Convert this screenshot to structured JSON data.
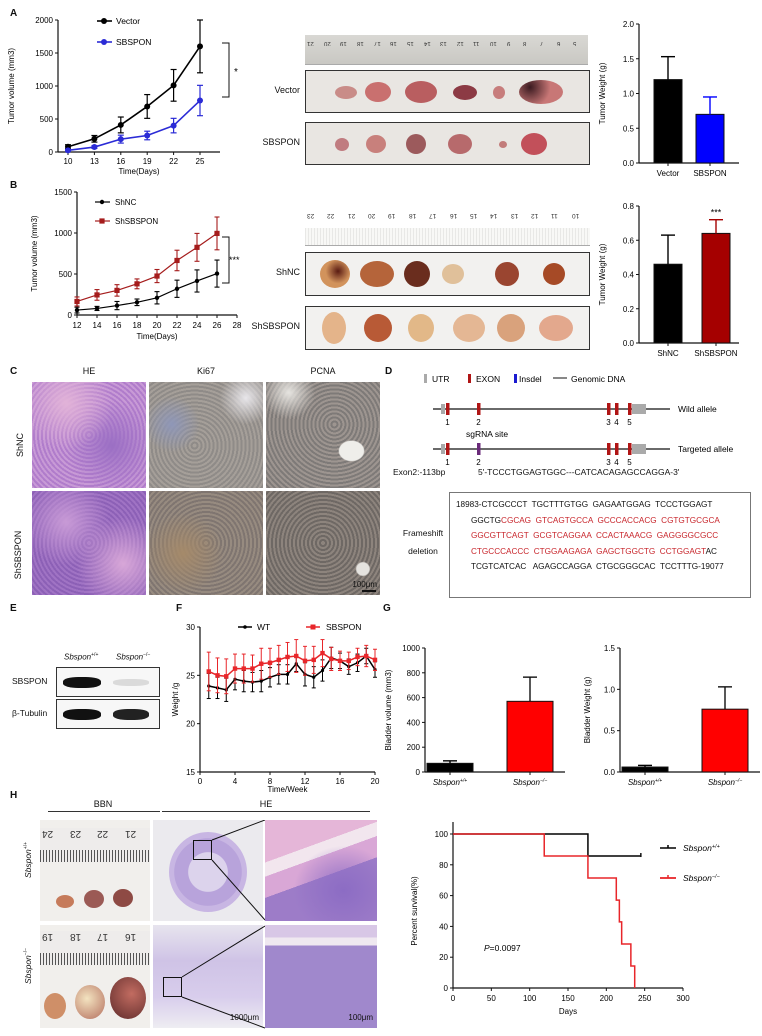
{
  "panels": {
    "A": {
      "letter": "A"
    },
    "B": {
      "letter": "B"
    },
    "C": {
      "letter": "C"
    },
    "D": {
      "letter": "D"
    },
    "E": {
      "letter": "E"
    },
    "F": {
      "letter": "F"
    },
    "G": {
      "letter": "G"
    },
    "H": {
      "letter": "H"
    }
  },
  "photoA": {
    "rows": [
      "Vector",
      "SBSPON"
    ],
    "ruler_ticks": [
      "21",
      "20",
      "19",
      "18",
      "17",
      "16",
      "15",
      "14",
      "13",
      "12",
      "11",
      "10",
      "9",
      "8",
      "7",
      "6",
      "5"
    ]
  },
  "photoB": {
    "rows": [
      "ShNC",
      "ShSBSPON"
    ],
    "ruler_ticks": [
      "23",
      "22",
      "21",
      "20",
      "19",
      "18",
      "17",
      "16",
      "15",
      "14",
      "13",
      "12",
      "11",
      "10"
    ]
  },
  "histoC": {
    "columns": [
      "HE",
      "Ki67",
      "PCNA"
    ],
    "rows": [
      "ShNC",
      "ShSBSPON"
    ],
    "scale_bar": "100μm"
  },
  "geneD": {
    "legend": {
      "utr": "UTR",
      "exon": "EXON",
      "insdel": "Insdel",
      "genomic": "Genomic DNA"
    },
    "wild_label": "Wild allele",
    "targeted_label": "Targeted allele",
    "sgrna_label": "sgRNA site",
    "exon_numbers": [
      "1",
      "2",
      "3",
      "4",
      "5"
    ],
    "exon2_label": "Exon2:-113bp",
    "exon2_seq": "5'-TCCCTGGAGTGGC---CATCACAGAGCCAGGA-3'",
    "frameshift_label_1": "Frameshift",
    "frameshift_label_2": "deletion",
    "seq_lines": [
      [
        {
          "t": "18983-CTCGCCCT  TGCTTTGTGG  GAGAATGGAG  TCCCTGGAGT",
          "red": false
        }
      ],
      [
        {
          "t": "GGCTG",
          "red": false
        },
        {
          "t": "CGCAG  GTCAGTGCCA  GCCCACCACG  CGTGTGCGCA",
          "red": true
        }
      ],
      [
        {
          "t": "GGCGTTCAGT  GCGTCAGGAA  CCACTAAACG  GAGGGGCGCC",
          "red": true
        }
      ],
      [
        {
          "t": "CTGCCCACCC  CTGGAAGAGA  GAGCTGGCTG  CCTGGAGT",
          "red": true
        },
        {
          "t": "AC",
          "red": false
        }
      ],
      [
        {
          "t": "TCGTCATCAC   AGAGCCAGGA  CTGCGGGCAC  TCCTTTG-19077",
          "red": false
        }
      ]
    ]
  },
  "westernE": {
    "col1": "Sbspon",
    "col1_sup": "+/+",
    "col2": "Sbspon",
    "col2_sup": "−/−",
    "row1": "SBSPON",
    "row2": "β-Tubulin"
  },
  "histoH": {
    "bbn_label": "BBN",
    "he_label": "HE",
    "row1": "Sbspon",
    "row1_sup": "+/+",
    "row2": "Sbspon",
    "row2_sup": "−/−",
    "ruler1": [
      "24",
      "23",
      "22",
      "21"
    ],
    "ruler2": [
      "19",
      "18",
      "17",
      "16"
    ],
    "scale_low": "1000μm",
    "scale_high": "100μm"
  },
  "chart_data": [
    {
      "id": "A-line",
      "type": "line",
      "title": "",
      "xlabel": "Time(Days)",
      "ylabel": "Tumor volume (mm3)",
      "x": [
        10,
        13,
        16,
        19,
        22,
        25
      ],
      "ylim": [
        0,
        2000
      ],
      "yticks": [
        0,
        500,
        1000,
        1500,
        2000
      ],
      "series": [
        {
          "name": "Vector",
          "color": "#000000",
          "values": [
            80,
            200,
            410,
            690,
            1010,
            1600
          ],
          "err": [
            30,
            50,
            120,
            180,
            240,
            400
          ]
        },
        {
          "name": "SBSPON",
          "color": "#2b2bd6",
          "values": [
            25,
            75,
            195,
            250,
            400,
            780
          ],
          "err": [
            15,
            20,
            60,
            65,
            110,
            230
          ]
        }
      ],
      "annotation": "*",
      "legend_position": "top-left"
    },
    {
      "id": "A-bar",
      "type": "bar",
      "ylabel": "Tumor Weight (g)",
      "categories": [
        "Vector",
        "SBSPON"
      ],
      "values": [
        1.2,
        0.7
      ],
      "err": [
        0.33,
        0.25
      ],
      "colors": [
        "#000000",
        "#0000ff"
      ],
      "ylim": [
        0,
        2.0
      ],
      "yticks": [
        "0.0",
        "0.5",
        "1.0",
        "1.5",
        "2.0"
      ]
    },
    {
      "id": "B-line",
      "type": "line",
      "xlabel": "Time(Days)",
      "ylabel": "Tumor volume (mm3)",
      "x": [
        12,
        14,
        16,
        18,
        20,
        22,
        24,
        26
      ],
      "xticks": [
        12,
        14,
        16,
        18,
        20,
        22,
        24,
        26,
        28
      ],
      "ylim": [
        0,
        1500
      ],
      "yticks": [
        0,
        500,
        1000,
        1500
      ],
      "series": [
        {
          "name": "ShNC",
          "color": "#000000",
          "values": [
            60,
            80,
            115,
            155,
            210,
            320,
            415,
            505
          ],
          "err": [
            35,
            25,
            50,
            40,
            75,
            105,
            135,
            165
          ]
        },
        {
          "name": "ShSBSPON",
          "color": "#a51c1c",
          "values": [
            165,
            245,
            300,
            380,
            475,
            665,
            825,
            995
          ],
          "err": [
            55,
            65,
            70,
            60,
            80,
            125,
            170,
            200
          ]
        }
      ],
      "annotation": "***",
      "legend_position": "top-left"
    },
    {
      "id": "B-bar",
      "type": "bar",
      "ylabel": "Tumor Weight (g)",
      "categories": [
        "ShNC",
        "ShSBSPON"
      ],
      "values": [
        0.46,
        0.64
      ],
      "err": [
        0.17,
        0.08
      ],
      "colors": [
        "#000000",
        "#a50000"
      ],
      "ylim": [
        0,
        0.8
      ],
      "yticks": [
        "0.0",
        "0.2",
        "0.4",
        "0.6",
        "0.8"
      ],
      "annotation": "***"
    },
    {
      "id": "F-line",
      "type": "line",
      "xlabel": "Time/Week",
      "ylabel": "Weight /g",
      "x": [
        1,
        2,
        3,
        4,
        5,
        6,
        7,
        8,
        9,
        10,
        11,
        12,
        13,
        14,
        15,
        16,
        17,
        18,
        19,
        20
      ],
      "xticks": [
        0,
        4,
        8,
        12,
        16,
        20
      ],
      "ylim": [
        15,
        30
      ],
      "yticks": [
        15,
        20,
        25,
        30
      ],
      "series": [
        {
          "name": "WT",
          "color": "#000000",
          "values": [
            23.9,
            23.7,
            23.5,
            24.6,
            24.4,
            24.3,
            24.4,
            24.8,
            25.1,
            25.1,
            26.2,
            25.1,
            24.8,
            25.5,
            26.8,
            26.5,
            25.9,
            26.3,
            27.0,
            25.6
          ],
          "err": [
            1.3,
            1.1,
            1.2,
            1.1,
            1.1,
            1.0,
            1.1,
            1.0,
            1.0,
            1.0,
            0.8,
            1.2,
            1.1,
            1.1,
            1.1,
            0.8,
            0.8,
            0.9,
            0.8,
            0.8
          ]
        },
        {
          "name": "SBSPON",
          "color": "#e8262a",
          "values": [
            25.4,
            25.0,
            24.9,
            25.7,
            25.7,
            25.7,
            26.2,
            26.3,
            26.6,
            26.9,
            27.0,
            26.5,
            26.6,
            27.3,
            26.7,
            26.5,
            26.5,
            26.9,
            27.0,
            26.6
          ],
          "err": [
            2.0,
            1.8,
            1.8,
            1.5,
            1.5,
            1.4,
            1.6,
            1.5,
            1.5,
            1.5,
            1.7,
            1.5,
            1.4,
            1.4,
            1.2,
            1.0,
            0.9,
            0.9,
            1.1,
            1.1
          ]
        }
      ],
      "legend_position": "top"
    },
    {
      "id": "G-volume",
      "type": "bar",
      "ylabel": "Bladder volume (mm3)",
      "categories": [
        "Sbspon+/+",
        "Sbspon−/−"
      ],
      "values": [
        70,
        570
      ],
      "err": [
        20,
        195
      ],
      "colors": [
        "#000000",
        "#ff0000"
      ],
      "ylim": [
        0,
        1000
      ],
      "yticks": [
        "0",
        "200",
        "400",
        "600",
        "800",
        "1000"
      ]
    },
    {
      "id": "G-weight",
      "type": "bar",
      "ylabel": "Bladder Weight (g)",
      "categories": [
        "Sbspon+/+",
        "Sbspon−/−"
      ],
      "values": [
        0.06,
        0.76
      ],
      "err": [
        0.02,
        0.27
      ],
      "colors": [
        "#000000",
        "#ff0000"
      ],
      "ylim": [
        0,
        1.5
      ],
      "yticks": [
        "0.0",
        "0.5",
        "1.0",
        "1.5"
      ]
    },
    {
      "id": "H-survival",
      "type": "line",
      "subtype": "kaplan-meier",
      "xlabel": "Days",
      "ylabel": "Percent survival(%)",
      "xlim": [
        0,
        300
      ],
      "xticks": [
        0,
        50,
        100,
        150,
        200,
        250,
        300
      ],
      "ylim": [
        0,
        100
      ],
      "yticks": [
        0,
        20,
        40,
        60,
        80,
        100
      ],
      "series": [
        {
          "name": "Sbspon+/+",
          "color": "#000000",
          "steps": [
            [
              0,
              100
            ],
            [
              176,
              100
            ],
            [
              176,
              85.7
            ],
            [
              245,
              85.7
            ]
          ]
        },
        {
          "name": "Sbspon−/−",
          "color": "#e8262a",
          "steps": [
            [
              0,
              100
            ],
            [
              119,
              100
            ],
            [
              119,
              85.7
            ],
            [
              176,
              85.7
            ],
            [
              176,
              71.4
            ],
            [
              213,
              71.4
            ],
            [
              213,
              57.1
            ],
            [
              217,
              57.1
            ],
            [
              217,
              42.9
            ],
            [
              220,
              42.9
            ],
            [
              220,
              28.6
            ],
            [
              232,
              28.6
            ],
            [
              232,
              14.3
            ],
            [
              237,
              14.3
            ],
            [
              237,
              0
            ]
          ]
        }
      ],
      "annotation": "P=0.0097",
      "legend_position": "right"
    }
  ]
}
